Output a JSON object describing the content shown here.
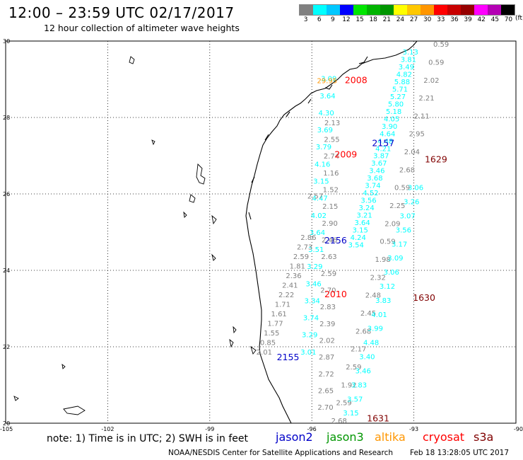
{
  "header": {
    "title": "12:00 – 23:59 UTC 02/17/2017",
    "subtitle": "12 hour collection of altimeter wave heights"
  },
  "colorbar": {
    "unit": "(ft)",
    "labels": [
      "3",
      "6",
      "9",
      "12",
      "15",
      "18",
      "21",
      "24",
      "27",
      "30",
      "33",
      "36",
      "39",
      "42",
      "45",
      "70"
    ],
    "colors": [
      "#808080",
      "#00ffff",
      "#00c8ff",
      "#0000ff",
      "#00e600",
      "#00b400",
      "#009600",
      "#ffff00",
      "#ffc800",
      "#ff9600",
      "#ff0000",
      "#c80000",
      "#960000",
      "#ff00ff",
      "#b400b4",
      "#000000"
    ]
  },
  "axes": {
    "lat_labels": [
      "30",
      "28",
      "26",
      "24",
      "22",
      "20"
    ],
    "lon_labels": [
      "-105",
      "-102",
      "-99",
      "-96",
      "-93",
      "-90"
    ]
  },
  "tracks": [
    {
      "id": "t1",
      "color": "#808080",
      "lat0": 29.85,
      "lat1": 20.0,
      "lon0": -92.2,
      "lon1": -95.2,
      "values": [
        "0.59",
        "0.59",
        "2.02",
        "2.21",
        "2.11",
        "2.95",
        "2.04",
        "2.68",
        "0.59",
        "2.25",
        "2.09",
        "0.59",
        "1.98",
        "2.32",
        "2.48",
        "2.45",
        "2.68",
        "2.17",
        "2.59",
        "1.92",
        "2.59",
        "2.68"
      ]
    },
    {
      "id": "t2",
      "color": "#00ffff",
      "lat0": 29.65,
      "lat1": 24.6,
      "lon0": -93.1,
      "lon1": -94.7,
      "values": [
        "3.13",
        "3.81",
        "3.49",
        "4.82",
        "5.88",
        "5.71",
        "5.27",
        "5.80",
        "5.18",
        "4.05",
        "3.90",
        "4.64",
        "4.48",
        "4.21",
        "3.87",
        "3.67",
        "3.46",
        "3.68",
        "3.74",
        "4.52",
        "3.56",
        "3.24",
        "3.21",
        "3.64",
        "3.15",
        "4.24",
        "3.54"
      ]
    },
    {
      "id": "t2b",
      "color": "#00ffff",
      "lat0": 26.1,
      "lat1": 20.2,
      "lon0": -92.95,
      "lon1": -94.85,
      "values": [
        "3.06",
        "3.26",
        "3.07",
        "3.56",
        "3.17",
        "3.09",
        "3.06",
        "3.12",
        "3.83",
        "4.01",
        "3.99",
        "4.48",
        "3.40",
        "3.46",
        "3.83",
        "3.57",
        "3.15"
      ]
    },
    {
      "id": "t3",
      "color": "#808080",
      "lat0": 27.8,
      "lat1": 20.35,
      "lon0": -95.4,
      "lon1": -95.6,
      "values": [
        "2.13",
        "2.55",
        "2.74",
        "1.16",
        "1.52",
        "2.15",
        "2.90",
        "2.46",
        "2.63",
        "2.59",
        "2.70",
        "2.83",
        "2.39",
        "2.02",
        "2.87",
        "2.72",
        "2.65",
        "2.70"
      ]
    },
    {
      "id": "t4",
      "color": "#00ffff",
      "lat0": 28.95,
      "lat1": 21.8,
      "lon0": -95.5,
      "lon1": -96.1,
      "values": [
        "3.09",
        "3.64",
        "4.30",
        "3.69",
        "3.79",
        "4.16",
        "3.15",
        "4.47",
        "4.02",
        "3.64",
        "3.51",
        "3.29",
        "3.46",
        "3.34",
        "3.74",
        "3.29",
        "3.01"
      ]
    },
    {
      "id": "t5",
      "color": "#808080",
      "lat0": 24.8,
      "lat1": 21.8,
      "lon0": -96.1,
      "lon1": -97.4,
      "values": [
        "2.86",
        "2.73",
        "2.59",
        "1.81",
        "2.36",
        "2.41",
        "2.22",
        "1.71",
        "1.61",
        "1.77",
        "1.55",
        "0.85",
        "2.01"
      ]
    }
  ],
  "extra_labels": [
    {
      "text": "29.95",
      "color": "#ff9600",
      "lat": 28.9,
      "lon": -95.55
    },
    {
      "text": "2.57",
      "color": "#808080",
      "lat": 25.88,
      "lon": -95.9
    }
  ],
  "pass_labels": [
    {
      "text": "2008",
      "color": "#ff0000",
      "lat": 28.9,
      "lon": -94.7
    },
    {
      "text": "2157",
      "color": "#0000c8",
      "lat": 27.25,
      "lon": -93.9
    },
    {
      "text": "2009",
      "color": "#ff0000",
      "lat": 26.95,
      "lon": -95.0
    },
    {
      "text": "1629",
      "color": "#800000",
      "lat": 26.82,
      "lon": -92.35
    },
    {
      "text": "2156",
      "color": "#0000c8",
      "lat": 24.7,
      "lon": -95.3
    },
    {
      "text": "2010",
      "color": "#ff0000",
      "lat": 23.3,
      "lon": -95.3
    },
    {
      "text": "1630",
      "color": "#800000",
      "lat": 23.2,
      "lon": -92.7
    },
    {
      "text": "2155",
      "color": "#0000c8",
      "lat": 21.65,
      "lon": -96.7
    },
    {
      "text": "1631",
      "color": "#800000",
      "lat": 20.05,
      "lon": -94.05
    }
  ],
  "footer": {
    "note": "note: 1) Time is in UTC; 2) SWH is in feet",
    "legend": [
      {
        "text": "jason2",
        "color": "#0000c8"
      },
      {
        "text": "jason3",
        "color": "#009600"
      },
      {
        "text": "altika",
        "color": "#ff9600"
      },
      {
        "text": "cryosat",
        "color": "#ff0000"
      },
      {
        "text": "s3a",
        "color": "#800000"
      }
    ],
    "credit": "NOAA/NESDIS Center for Satellite Applications and Research",
    "timestamp": "Feb 18 13:28:05 UTC 2017"
  }
}
